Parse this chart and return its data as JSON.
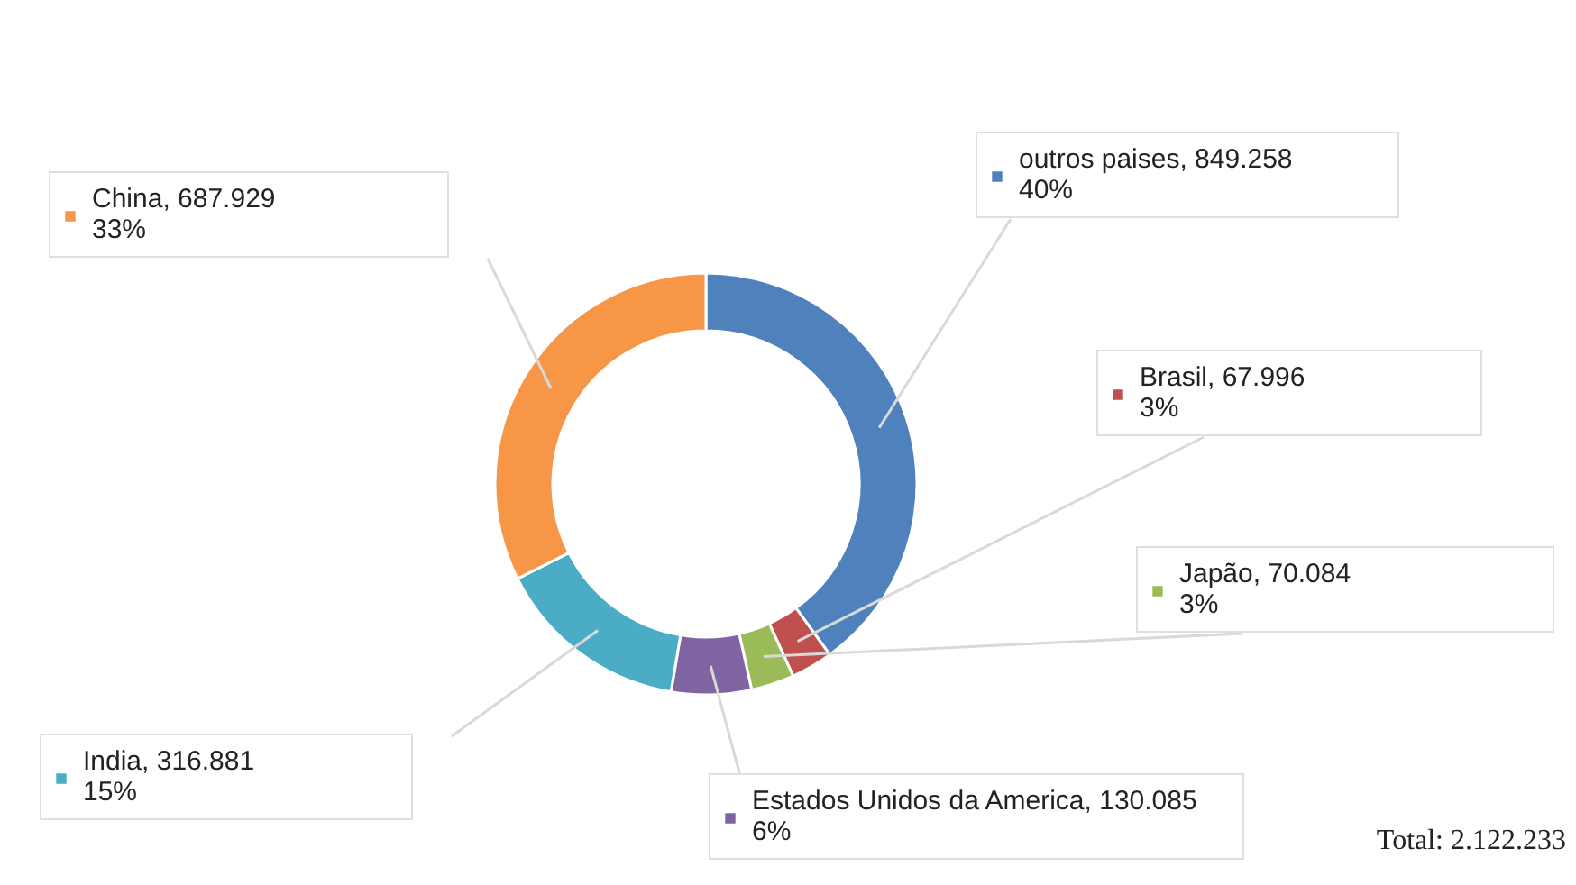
{
  "chart_data": {
    "type": "donut",
    "categories": [
      "outros paises",
      "Brasil",
      "Japão",
      "Estados Unidos da America",
      "India",
      "China"
    ],
    "values": [
      849258,
      67996,
      70084,
      130085,
      316881,
      687929
    ],
    "colors": [
      "#4f81bd",
      "#c0504d",
      "#9bbb59",
      "#8064a2",
      "#4bacc6",
      "#f79646"
    ],
    "value_labels": [
      "849.258\n40%",
      "67.996\n3%",
      "70.084\n3%",
      "130.085\n6%",
      "316.881\n15%",
      "687.929\n33%"
    ],
    "annotations": [
      "Total: 2.122.233"
    ],
    "legend": "right"
  }
}
